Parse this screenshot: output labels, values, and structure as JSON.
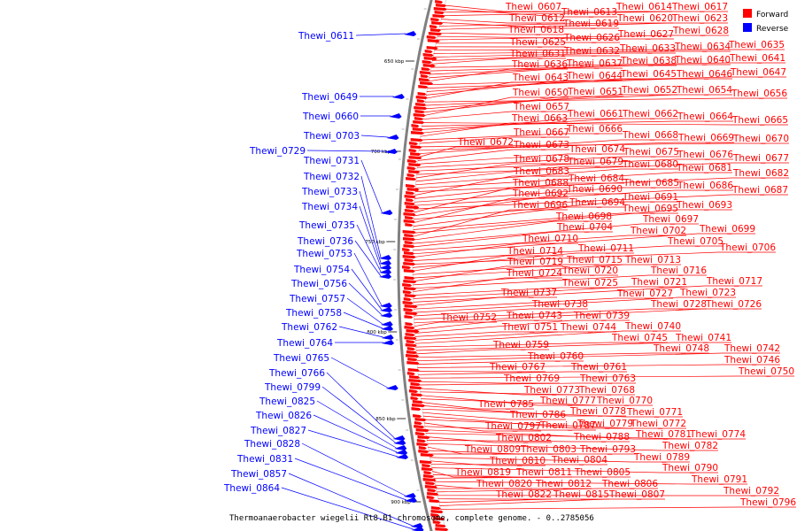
{
  "legend": [
    {
      "label": "Forward",
      "color": "#ff0000"
    },
    {
      "label": "Reverse",
      "color": "#0000ff"
    }
  ],
  "caption": "Thermoanaerobacter wiegelii Rt8.B1 chromosome, complete genome. - 0..2785056",
  "colors": {
    "forward": "#ff0000",
    "reverse": "#0000ff",
    "backbone": "#808080"
  },
  "scale_labels": [
    "650 kbp",
    "700 kbp",
    "750 kbp",
    "800 kbp",
    "850 kbp",
    "900 kbp"
  ],
  "reverse_labels": [
    "Thewi_0611",
    "Thewi_0649",
    "Thewi_0660",
    "Thewi_0703",
    "Thewi_0729",
    "Thewi_0731",
    "Thewi_0732",
    "Thewi_0733",
    "Thewi_0734",
    "Thewi_0735",
    "Thewi_0736",
    "Thewi_0753",
    "Thewi_0754",
    "Thewi_0756",
    "Thewi_0757",
    "Thewi_0758",
    "Thewi_0762",
    "Thewi_0764",
    "Thewi_0765",
    "Thewi_0766",
    "Thewi_0799",
    "Thewi_0825",
    "Thewi_0826",
    "Thewi_0827",
    "Thewi_0828",
    "Thewi_0831",
    "Thewi_0857",
    "Thewi_0864"
  ],
  "forward_labels": [
    "Thewi_0607",
    "Thewi_0613",
    "Thewi_0614",
    "Thewi_0617",
    "Thewi_0612",
    "Thewi_0619",
    "Thewi_0620",
    "Thewi_0623",
    "Thewi_0618",
    "Thewi_0627",
    "Thewi_0628",
    "Thewi_0626",
    "Thewi_0625",
    "Thewi_0635",
    "Thewi_0634",
    "Thewi_0633",
    "Thewi_0632",
    "Thewi_0631",
    "Thewi_0641",
    "Thewi_0640",
    "Thewi_0638",
    "Thewi_0637",
    "Thewi_0636",
    "Thewi_0647",
    "Thewi_0646",
    "Thewi_0645",
    "Thewi_0644",
    "Thewi_0643",
    "Thewi_0656",
    "Thewi_0654",
    "Thewi_0652",
    "Thewi_0651",
    "Thewi_0650",
    "Thewi_0657",
    "Thewi_0665",
    "Thewi_0664",
    "Thewi_0662",
    "Thewi_0661",
    "Thewi_0663",
    "Thewi_0666",
    "Thewi_0667",
    "Thewi_0670",
    "Thewi_0669",
    "Thewi_0668",
    "Thewi_0672",
    "Thewi_0673",
    "Thewi_0674",
    "Thewi_0675",
    "Thewi_0676",
    "Thewi_0677",
    "Thewi_0678",
    "Thewi_0679",
    "Thewi_0680",
    "Thewi_0681",
    "Thewi_0682",
    "Thewi_0683",
    "Thewi_0684",
    "Thewi_0685",
    "Thewi_0686",
    "Thewi_0687",
    "Thewi_0688",
    "Thewi_0690",
    "Thewi_0691",
    "Thewi_0692",
    "Thewi_0694",
    "Thewi_0695",
    "Thewi_0693",
    "Thewi_0696",
    "Thewi_0698",
    "Thewi_0697",
    "Thewi_0704",
    "Thewi_0702",
    "Thewi_0699",
    "Thewi_0710",
    "Thewi_0705",
    "Thewi_0706",
    "Thewi_0711",
    "Thewi_0714",
    "Thewi_0715",
    "Thewi_0713",
    "Thewi_0719",
    "Thewi_0720",
    "Thewi_0716",
    "Thewi_0724",
    "Thewi_0725",
    "Thewi_0721",
    "Thewi_0717",
    "Thewi_0737",
    "Thewi_0727",
    "Thewi_0723",
    "Thewi_0738",
    "Thewi_0728",
    "Thewi_0726",
    "Thewi_0752",
    "Thewi_0743",
    "Thewi_0739",
    "Thewi_0751",
    "Thewi_0744",
    "Thewi_0740",
    "Thewi_0745",
    "Thewi_0741",
    "Thewi_0759",
    "Thewi_0748",
    "Thewi_0742",
    "Thewi_0760",
    "Thewi_0746",
    "Thewi_0767",
    "Thewi_0761",
    "Thewi_0750",
    "Thewi_0769",
    "Thewi_0763",
    "Thewi_0773",
    "Thewi_0768",
    "Thewi_0777",
    "Thewi_0770",
    "Thewi_0785",
    "Thewi_0778",
    "Thewi_0771",
    "Thewi_0786",
    "Thewi_0779",
    "Thewi_0772",
    "Thewi_0797",
    "Thewi_0787",
    "Thewi_0781",
    "Thewi_0774",
    "Thewi_0802",
    "Thewi_0788",
    "Thewi_0782",
    "Thewi_0809",
    "Thewi_0803",
    "Thewi_0793",
    "Thewi_0789",
    "Thewi_0810",
    "Thewi_0804",
    "Thewi_0790",
    "Thewi_0819",
    "Thewi_0811",
    "Thewi_0805",
    "Thewi_0791",
    "Thewi_0820",
    "Thewi_0812",
    "Thewi_0806",
    "Thewi_0792",
    "Thewi_0822",
    "Thewi_0815",
    "Thewi_0807",
    "Thewi_0796"
  ]
}
